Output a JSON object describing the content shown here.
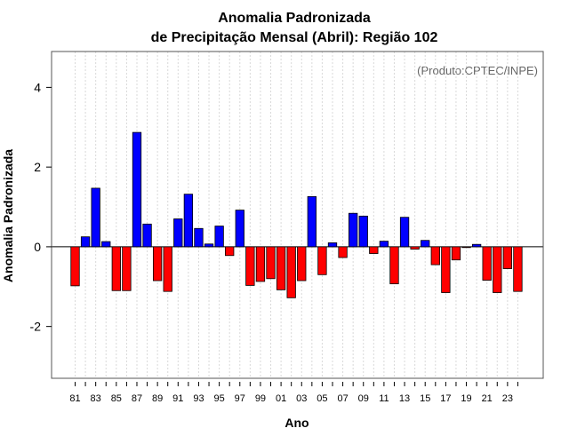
{
  "chart_data": {
    "type": "bar",
    "title": "Anomalia Padronizada",
    "subtitle": "de Precipitação Mensal (Abril): Região 102",
    "xlabel": "Ano",
    "ylabel": "Anomalia Padronizada",
    "annotation": "(Produto:CPTEC/INPE)",
    "ylim": [
      -3.3,
      4.9
    ],
    "yticks": [
      -2,
      0,
      2,
      4
    ],
    "grid": "vertical dotted",
    "categories": [
      "81",
      "82",
      "83",
      "84",
      "85",
      "86",
      "87",
      "88",
      "89",
      "90",
      "91",
      "92",
      "93",
      "94",
      "95",
      "96",
      "97",
      "98",
      "99",
      "00",
      "01",
      "02",
      "03",
      "04",
      "05",
      "06",
      "07",
      "08",
      "09",
      "10",
      "11",
      "12",
      "13",
      "14",
      "15",
      "16",
      "17",
      "18",
      "19",
      "20",
      "21",
      "22",
      "23",
      "24"
    ],
    "xtick_labels": [
      "81",
      "83",
      "85",
      "87",
      "89",
      "91",
      "93",
      "95",
      "97",
      "99",
      "01",
      "03",
      "05",
      "07",
      "09",
      "11",
      "13",
      "15",
      "17",
      "19",
      "21",
      "23"
    ],
    "values": [
      -0.98,
      0.25,
      1.47,
      0.13,
      -1.1,
      -1.1,
      2.87,
      0.57,
      -0.85,
      -1.12,
      0.7,
      1.32,
      0.46,
      0.07,
      0.52,
      -0.22,
      0.92,
      -0.97,
      -0.87,
      -0.8,
      -1.08,
      -1.28,
      -0.85,
      1.26,
      -0.7,
      0.1,
      -0.27,
      0.84,
      0.77,
      -0.17,
      0.14,
      -0.93,
      0.74,
      -0.06,
      0.16,
      -0.45,
      -1.15,
      -0.33,
      -0.02,
      0.06,
      -0.84,
      -1.15,
      -0.55,
      -1.12
    ],
    "colors": {
      "positive": "#0000ff",
      "negative": "#ff0000"
    }
  }
}
